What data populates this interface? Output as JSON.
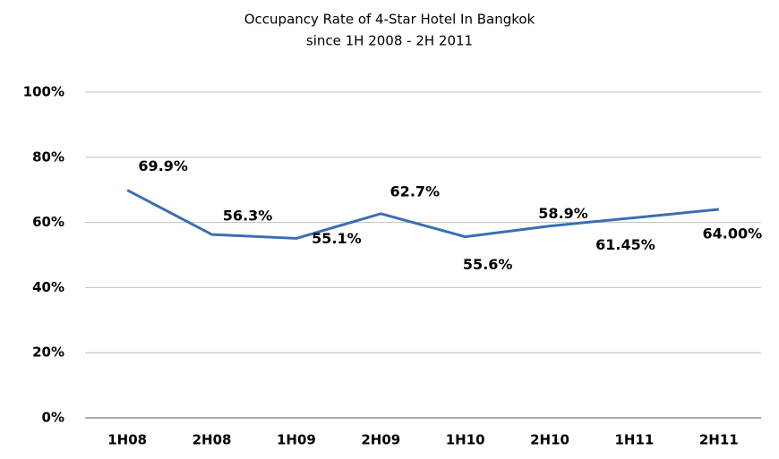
{
  "chart_data": {
    "type": "line",
    "title": "Occupancy Rate of 4-Star Hotel In Bangkok",
    "subtitle": "since 1H 2008 - 2H 2011",
    "categories": [
      "1H08",
      "2H08",
      "1H09",
      "2H09",
      "1H10",
      "2H10",
      "1H11",
      "2H11"
    ],
    "series": [
      {
        "color": "#3a6fb5",
        "values": [
          69.9,
          56.3,
          55.1,
          62.7,
          55.6,
          58.9,
          61.45,
          64.0
        ],
        "value_labels": [
          "69.9%",
          "56.3%",
          "55.1%",
          "62.7%",
          "55.6%",
          "58.9%",
          "61.45%",
          "64.00%"
        ]
      }
    ],
    "ylim": [
      0,
      100
    ],
    "yticks": [
      {
        "value": 0,
        "label": "0%"
      },
      {
        "value": 20,
        "label": "20%"
      },
      {
        "value": 40,
        "label": "40%"
      },
      {
        "value": 60,
        "label": "60%"
      },
      {
        "value": 80,
        "label": "80%"
      },
      {
        "value": 100,
        "label": "100%"
      }
    ],
    "grid": true
  }
}
